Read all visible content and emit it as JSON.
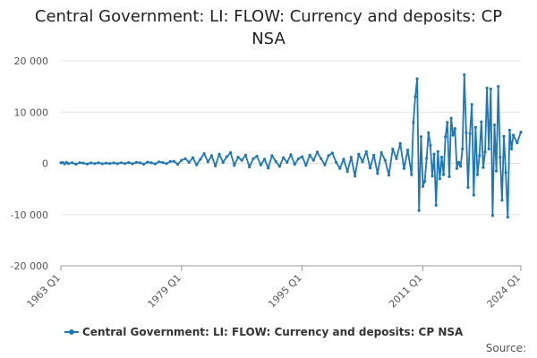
{
  "chart_data": {
    "type": "line",
    "title": "Central Government: LI: FLOW: Currency and deposits: CP NSA",
    "xlabel": "",
    "ylabel": "",
    "ylim": [
      -20000,
      20000
    ],
    "y_ticks": [
      20000,
      10000,
      0,
      -10000,
      -20000
    ],
    "y_tick_labels": [
      "20 000",
      "10 000",
      "0",
      "-10 000",
      "-20 000"
    ],
    "x_tick_labels": [
      "1963 Q1",
      "1979 Q1",
      "1995 Q1",
      "2011 Q1",
      "2024 Q1"
    ],
    "x_ticks": [
      1963,
      1979,
      1995,
      2011,
      2024
    ],
    "grid": true,
    "legend_position": "bottom",
    "color": "#1f77b4",
    "series": [
      {
        "name": "Central Government: LI: FLOW: Currency and deposits: CP NSA",
        "points": [
          [
            1963.0,
            100
          ],
          [
            1963.25,
            150
          ],
          [
            1963.5,
            -100
          ],
          [
            1963.75,
            200
          ],
          [
            1964.0,
            -50
          ],
          [
            1964.5,
            100
          ],
          [
            1965.0,
            -150
          ],
          [
            1965.5,
            120
          ],
          [
            1966.0,
            50
          ],
          [
            1966.5,
            -120
          ],
          [
            1967.0,
            80
          ],
          [
            1967.5,
            -60
          ],
          [
            1968.0,
            110
          ],
          [
            1968.5,
            -90
          ],
          [
            1969.0,
            60
          ],
          [
            1969.5,
            -40
          ],
          [
            1970.0,
            90
          ],
          [
            1970.5,
            -70
          ],
          [
            1971.0,
            120
          ],
          [
            1971.5,
            -50
          ],
          [
            1972.0,
            150
          ],
          [
            1972.5,
            -80
          ],
          [
            1973.0,
            200
          ],
          [
            1973.5,
            100
          ],
          [
            1974.0,
            -150
          ],
          [
            1974.5,
            250
          ],
          [
            1975.0,
            100
          ],
          [
            1975.5,
            -100
          ],
          [
            1976.0,
            300
          ],
          [
            1976.5,
            150
          ],
          [
            1977.0,
            -50
          ],
          [
            1977.5,
            350
          ],
          [
            1978.0,
            400
          ],
          [
            1978.5,
            -200
          ],
          [
            1979.0,
            600
          ],
          [
            1979.5,
            900
          ],
          [
            1980.0,
            200
          ],
          [
            1980.5,
            1100
          ],
          [
            1981.0,
            -300
          ],
          [
            1981.5,
            800
          ],
          [
            1982.0,
            1900
          ],
          [
            1982.5,
            300
          ],
          [
            1983.0,
            1500
          ],
          [
            1983.5,
            -500
          ],
          [
            1984.0,
            1800
          ],
          [
            1984.5,
            200
          ],
          [
            1985.0,
            1300
          ],
          [
            1985.5,
            2100
          ],
          [
            1986.0,
            -400
          ],
          [
            1986.5,
            1200
          ],
          [
            1987.0,
            600
          ],
          [
            1987.5,
            1600
          ],
          [
            1988.0,
            -700
          ],
          [
            1988.5,
            900
          ],
          [
            1989.0,
            1400
          ],
          [
            1989.5,
            -300
          ],
          [
            1990.0,
            800
          ],
          [
            1990.5,
            -900
          ],
          [
            1991.0,
            1500
          ],
          [
            1991.5,
            400
          ],
          [
            1992.0,
            -600
          ],
          [
            1992.5,
            1100
          ],
          [
            1993.0,
            200
          ],
          [
            1993.5,
            1700
          ],
          [
            1994.0,
            -200
          ],
          [
            1994.5,
            900
          ],
          [
            1995.0,
            1300
          ],
          [
            1995.5,
            -400
          ],
          [
            1996.0,
            1600
          ],
          [
            1996.5,
            600
          ],
          [
            1997.0,
            2200
          ],
          [
            1997.5,
            900
          ],
          [
            1998.0,
            -300
          ],
          [
            1998.5,
            1500
          ],
          [
            1999.0,
            2000
          ],
          [
            1999.5,
            200
          ],
          [
            2000.0,
            -1000
          ],
          [
            2000.5,
            800
          ],
          [
            2001.0,
            -1600
          ],
          [
            2001.5,
            1200
          ],
          [
            2002.0,
            -2500
          ],
          [
            2002.5,
            1800
          ],
          [
            2003.0,
            300
          ],
          [
            2003.5,
            2300
          ],
          [
            2004.0,
            -900
          ],
          [
            2004.5,
            1600
          ],
          [
            2005.0,
            -2000
          ],
          [
            2005.5,
            2100
          ],
          [
            2006.0,
            600
          ],
          [
            2006.5,
            -2300
          ],
          [
            2007.0,
            2800
          ],
          [
            2007.5,
            900
          ],
          [
            2008.0,
            3900
          ],
          [
            2008.5,
            -1000
          ],
          [
            2009.0,
            2600
          ],
          [
            2009.5,
            -2200
          ],
          [
            2009.75,
            8000
          ],
          [
            2010.0,
            13000
          ],
          [
            2010.25,
            16500
          ],
          [
            2010.5,
            -9200
          ],
          [
            2010.75,
            5200
          ],
          [
            2011.0,
            -4500
          ],
          [
            2011.25,
            -3500
          ],
          [
            2011.5,
            1000
          ],
          [
            2011.75,
            6000
          ],
          [
            2012.0,
            3500
          ],
          [
            2012.25,
            -2500
          ],
          [
            2012.5,
            1800
          ],
          [
            2012.75,
            -8200
          ],
          [
            2013.0,
            2300
          ],
          [
            2013.25,
            -3000
          ],
          [
            2013.5,
            1200
          ],
          [
            2013.75,
            -2200
          ],
          [
            2014.0,
            5200
          ],
          [
            2014.25,
            8000
          ],
          [
            2014.5,
            -2600
          ],
          [
            2014.75,
            8800
          ],
          [
            2015.0,
            5500
          ],
          [
            2015.25,
            6800
          ],
          [
            2015.5,
            -1000
          ],
          [
            2015.75,
            200
          ],
          [
            2016.0,
            -600
          ],
          [
            2016.25,
            2800
          ],
          [
            2016.5,
            17300
          ],
          [
            2016.75,
            6000
          ],
          [
            2017.0,
            -4700
          ],
          [
            2017.25,
            5800
          ],
          [
            2017.5,
            11500
          ],
          [
            2017.75,
            -6200
          ],
          [
            2018.0,
            7000
          ],
          [
            2018.25,
            -2200
          ],
          [
            2018.5,
            1500
          ],
          [
            2018.75,
            8100
          ],
          [
            2019.0,
            -800
          ],
          [
            2019.25,
            2200
          ],
          [
            2019.5,
            14700
          ],
          [
            2019.75,
            2800
          ],
          [
            2020.0,
            14500
          ],
          [
            2020.25,
            -10200
          ],
          [
            2020.5,
            7500
          ],
          [
            2020.75,
            -1500
          ],
          [
            2021.0,
            15000
          ],
          [
            2021.25,
            1200
          ],
          [
            2021.5,
            -7200
          ],
          [
            2021.75,
            5300
          ],
          [
            2022.0,
            -1800
          ],
          [
            2022.25,
            -10500
          ],
          [
            2022.5,
            6500
          ],
          [
            2022.75,
            2800
          ],
          [
            2023.0,
            5500
          ],
          [
            2023.5,
            4000
          ],
          [
            2024.0,
            6100
          ]
        ]
      }
    ]
  },
  "source_label": "Source:"
}
